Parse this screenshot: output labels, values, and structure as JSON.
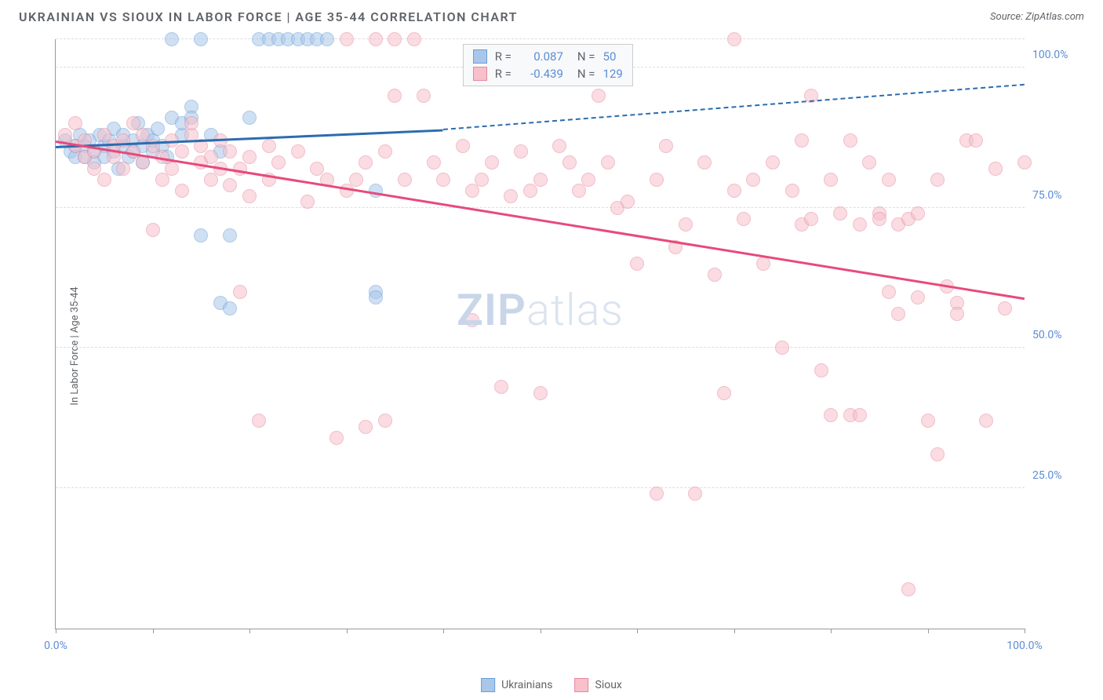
{
  "header": {
    "title": "UKRAINIAN VS SIOUX IN LABOR FORCE | AGE 35-44 CORRELATION CHART",
    "source": "Source: ZipAtlas.com"
  },
  "chart": {
    "type": "scatter",
    "ylabel": "In Labor Force | Age 35-44",
    "xlim": [
      0,
      100
    ],
    "ylim": [
      0,
      105
    ],
    "ytick_values": [
      25,
      50,
      75,
      100
    ],
    "ytick_labels": [
      "25.0%",
      "50.0%",
      "75.0%",
      "100.0%"
    ],
    "xtick_values": [
      0,
      10,
      20,
      30,
      40,
      50,
      60,
      70,
      80,
      90,
      100
    ],
    "xtick_labels_shown": {
      "0": "0.0%",
      "100": "100.0%"
    },
    "background_color": "#ffffff",
    "grid_color": "#dddddd",
    "watermark_text_bold": "ZIP",
    "watermark_text_rest": "atlas",
    "series": [
      {
        "name": "Ukrainians",
        "marker_color_fill": "#a9c7ea",
        "marker_color_stroke": "#6b9fd8",
        "marker_opacity": 0.55,
        "marker_radius": 9,
        "trend_color": "#2b6cb0",
        "trend_width": 3,
        "trend_start": [
          0,
          86
        ],
        "trend_end_solid": [
          40,
          89
        ],
        "trend_end_dash": [
          100,
          97
        ],
        "R": "0.087",
        "N": "50",
        "points": [
          [
            1,
            87
          ],
          [
            1.5,
            85
          ],
          [
            2,
            86
          ],
          [
            2,
            84
          ],
          [
            2.5,
            88
          ],
          [
            3,
            86
          ],
          [
            3,
            84
          ],
          [
            3.5,
            87
          ],
          [
            4,
            85
          ],
          [
            4,
            83
          ],
          [
            4.5,
            88
          ],
          [
            5,
            86
          ],
          [
            5,
            84
          ],
          [
            5.5,
            87
          ],
          [
            6,
            85
          ],
          [
            6,
            89
          ],
          [
            6.5,
            82
          ],
          [
            7,
            86
          ],
          [
            7,
            88
          ],
          [
            7.5,
            84
          ],
          [
            8,
            85
          ],
          [
            8,
            87
          ],
          [
            8.5,
            90
          ],
          [
            9,
            86
          ],
          [
            9,
            83
          ],
          [
            9.5,
            88
          ],
          [
            10,
            85
          ],
          [
            10,
            87
          ],
          [
            10.5,
            89
          ],
          [
            11,
            86
          ],
          [
            11.5,
            84
          ],
          [
            12,
            91
          ],
          [
            12,
            105
          ],
          [
            13,
            88
          ],
          [
            13,
            90
          ],
          [
            14,
            93
          ],
          [
            14,
            91
          ],
          [
            15,
            70
          ],
          [
            15,
            105
          ],
          [
            16,
            88
          ],
          [
            17,
            85
          ],
          [
            17,
            58
          ],
          [
            18,
            57
          ],
          [
            18,
            70
          ],
          [
            20,
            91
          ],
          [
            21,
            105
          ],
          [
            22,
            105
          ],
          [
            23,
            105
          ],
          [
            24,
            105
          ],
          [
            25,
            105
          ],
          [
            26,
            105
          ],
          [
            27,
            105
          ],
          [
            28,
            105
          ],
          [
            33,
            78
          ],
          [
            33,
            60
          ],
          [
            33,
            59
          ]
        ]
      },
      {
        "name": "Sioux",
        "marker_color_fill": "#f7c0cb",
        "marker_color_stroke": "#e68aa0",
        "marker_opacity": 0.55,
        "marker_radius": 9,
        "trend_color": "#e74a7b",
        "trend_width": 3,
        "trend_start": [
          0,
          87
        ],
        "trend_end_solid": [
          100,
          59
        ],
        "trend_end_dash": [
          100,
          59
        ],
        "R": "-0.439",
        "N": "129",
        "points": [
          [
            1,
            88
          ],
          [
            2,
            86
          ],
          [
            2,
            90
          ],
          [
            3,
            84
          ],
          [
            3,
            87
          ],
          [
            4,
            85
          ],
          [
            4,
            82
          ],
          [
            5,
            88
          ],
          [
            5,
            80
          ],
          [
            6,
            86
          ],
          [
            6,
            84
          ],
          [
            7,
            87
          ],
          [
            7,
            82
          ],
          [
            8,
            85
          ],
          [
            8,
            90
          ],
          [
            9,
            83
          ],
          [
            9,
            88
          ],
          [
            10,
            71
          ],
          [
            10,
            86
          ],
          [
            11,
            84
          ],
          [
            11,
            80
          ],
          [
            12,
            87
          ],
          [
            12,
            82
          ],
          [
            13,
            85
          ],
          [
            13,
            78
          ],
          [
            14,
            88
          ],
          [
            14,
            90
          ],
          [
            15,
            83
          ],
          [
            15,
            86
          ],
          [
            16,
            80
          ],
          [
            16,
            84
          ],
          [
            17,
            82
          ],
          [
            17,
            87
          ],
          [
            18,
            79
          ],
          [
            18,
            85
          ],
          [
            19,
            82
          ],
          [
            19,
            60
          ],
          [
            20,
            84
          ],
          [
            20,
            77
          ],
          [
            21,
            37
          ],
          [
            22,
            86
          ],
          [
            22,
            80
          ],
          [
            23,
            83
          ],
          [
            25,
            85
          ],
          [
            26,
            76
          ],
          [
            27,
            82
          ],
          [
            28,
            80
          ],
          [
            29,
            34
          ],
          [
            30,
            78
          ],
          [
            30,
            105
          ],
          [
            31,
            80
          ],
          [
            32,
            83
          ],
          [
            32,
            36
          ],
          [
            33,
            105
          ],
          [
            34,
            37
          ],
          [
            34,
            85
          ],
          [
            35,
            105
          ],
          [
            35,
            95
          ],
          [
            36,
            80
          ],
          [
            37,
            105
          ],
          [
            38,
            95
          ],
          [
            39,
            83
          ],
          [
            40,
            80
          ],
          [
            42,
            86
          ],
          [
            43,
            55
          ],
          [
            43,
            78
          ],
          [
            44,
            80
          ],
          [
            45,
            83
          ],
          [
            46,
            43
          ],
          [
            47,
            77
          ],
          [
            48,
            85
          ],
          [
            49,
            78
          ],
          [
            50,
            42
          ],
          [
            50,
            80
          ],
          [
            52,
            86
          ],
          [
            53,
            83
          ],
          [
            54,
            78
          ],
          [
            55,
            80
          ],
          [
            56,
            95
          ],
          [
            57,
            83
          ],
          [
            58,
            75
          ],
          [
            59,
            76
          ],
          [
            60,
            65
          ],
          [
            62,
            80
          ],
          [
            62,
            24
          ],
          [
            63,
            86
          ],
          [
            64,
            68
          ],
          [
            65,
            72
          ],
          [
            66,
            24
          ],
          [
            67,
            83
          ],
          [
            68,
            63
          ],
          [
            69,
            42
          ],
          [
            70,
            78
          ],
          [
            70,
            105
          ],
          [
            71,
            73
          ],
          [
            72,
            80
          ],
          [
            73,
            65
          ],
          [
            74,
            83
          ],
          [
            75,
            50
          ],
          [
            76,
            78
          ],
          [
            77,
            72
          ],
          [
            77,
            87
          ],
          [
            78,
            73
          ],
          [
            78,
            95
          ],
          [
            79,
            46
          ],
          [
            80,
            80
          ],
          [
            80,
            38
          ],
          [
            81,
            74
          ],
          [
            82,
            38
          ],
          [
            82,
            87
          ],
          [
            83,
            72
          ],
          [
            83,
            38
          ],
          [
            84,
            83
          ],
          [
            85,
            74
          ],
          [
            85,
            73
          ],
          [
            86,
            80
          ],
          [
            86,
            60
          ],
          [
            87,
            72
          ],
          [
            87,
            56
          ],
          [
            88,
            73
          ],
          [
            88,
            7
          ],
          [
            89,
            74
          ],
          [
            89,
            59
          ],
          [
            90,
            37
          ],
          [
            91,
            80
          ],
          [
            91,
            31
          ],
          [
            92,
            61
          ],
          [
            93,
            58
          ],
          [
            93,
            56
          ],
          [
            94,
            87
          ],
          [
            95,
            87
          ],
          [
            96,
            37
          ],
          [
            97,
            82
          ],
          [
            98,
            57
          ],
          [
            100,
            83
          ]
        ]
      }
    ],
    "legend": [
      {
        "label": "Ukrainians",
        "fill": "#a9c7ea",
        "stroke": "#6b9fd8"
      },
      {
        "label": "Sioux",
        "fill": "#f7c0cb",
        "stroke": "#e68aa0"
      }
    ],
    "stats_value_color": "#5b8dd6"
  }
}
